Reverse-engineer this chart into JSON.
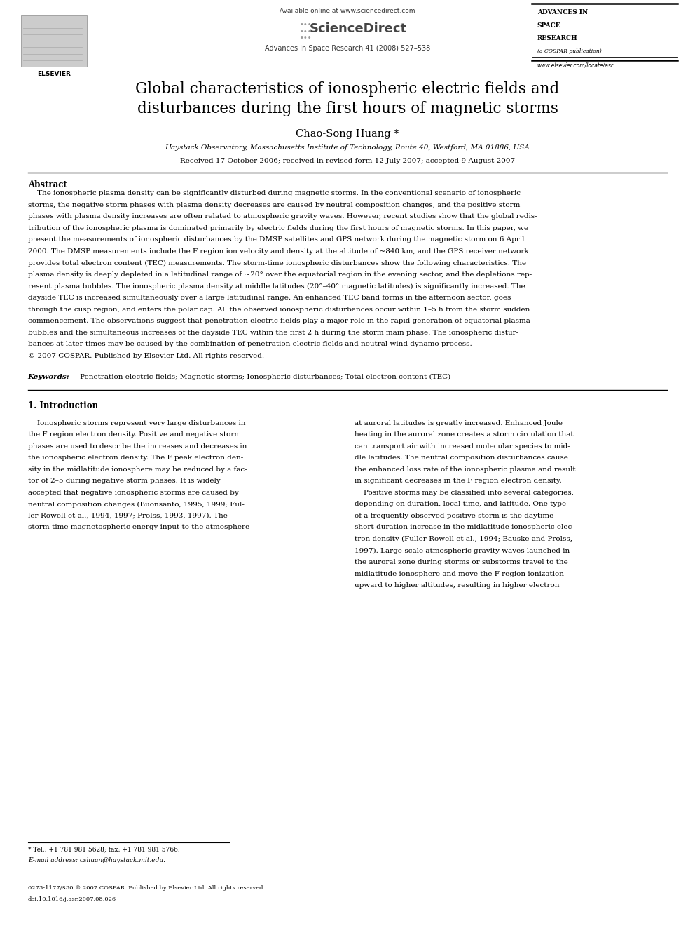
{
  "bg_color": "#ffffff",
  "page_width": 9.92,
  "page_height": 13.23,
  "available_online": "Available online at www.sciencedirect.com",
  "journal_line": "Advances in Space Research 41 (2008) 527–538",
  "website": "www.elsevier.com/locate/asr",
  "advances_lines": [
    "ADVANCES IN",
    "SPACE",
    "RESEARCH",
    "(a COSPAR publication)"
  ],
  "elsevier": "ELSEVIER",
  "sciencedirect": "ScienceDirect",
  "title": "Global characteristics of ionospheric electric fields and\ndisturbances during the first hours of magnetic storms",
  "author": "Chao-Song Huang *",
  "affiliation": "Haystack Observatory, Massachusetts Institute of Technology, Route 40, Westford, MA 01886, USA",
  "received": "Received 17 October 2006; received in revised form 12 July 2007; accepted 9 August 2007",
  "abstract_title": "Abstract",
  "abstract_lines": [
    "    The ionospheric plasma density can be significantly disturbed during magnetic storms. In the conventional scenario of ionospheric",
    "storms, the negative storm phases with plasma density decreases are caused by neutral composition changes, and the positive storm",
    "phases with plasma density increases are often related to atmospheric gravity waves. However, recent studies show that the global redis-",
    "tribution of the ionospheric plasma is dominated primarily by electric fields during the first hours of magnetic storms. In this paper, we",
    "present the measurements of ionospheric disturbances by the DMSP satellites and GPS network during the magnetic storm on 6 April",
    "2000. The DMSP measurements include the F region ion velocity and density at the altitude of ~840 km, and the GPS receiver network",
    "provides total electron content (TEC) measurements. The storm-time ionospheric disturbances show the following characteristics. The",
    "plasma density is deeply depleted in a latitudinal range of ~20° over the equatorial region in the evening sector, and the depletions rep-",
    "resent plasma bubbles. The ionospheric plasma density at middle latitudes (20°–40° magnetic latitudes) is significantly increased. The",
    "dayside TEC is increased simultaneously over a large latitudinal range. An enhanced TEC band forms in the afternoon sector, goes",
    "through the cusp region, and enters the polar cap. All the observed ionospheric disturbances occur within 1–5 h from the storm sudden",
    "commencement. The observations suggest that penetration electric fields play a major role in the rapid generation of equatorial plasma",
    "bubbles and the simultaneous increases of the dayside TEC within the first 2 h during the storm main phase. The ionospheric distur-",
    "bances at later times may be caused by the combination of penetration electric fields and neutral wind dynamo process.",
    "© 2007 COSPAR. Published by Elsevier Ltd. All rights reserved."
  ],
  "keywords_label": "Keywords:",
  "keywords_text": " Penetration electric fields; Magnetic storms; Ionospheric disturbances; Total electron content (TEC)",
  "section1_title": "1. Introduction",
  "col1_lines": [
    "    Ionospheric storms represent very large disturbances in",
    "the F region electron density. Positive and negative storm",
    "phases are used to describe the increases and decreases in",
    "the ionospheric electron density. The F peak electron den-",
    "sity in the midlatitude ionosphere may be reduced by a fac-",
    "tor of 2–5 during negative storm phases. It is widely",
    "accepted that negative ionospheric storms are caused by",
    "neutral composition changes (Buonsanto, 1995, 1999; Ful-",
    "ler-Rowell et al., 1994, 1997; Prolss, 1993, 1997). The",
    "storm-time magnetospheric energy input to the atmosphere"
  ],
  "col2_lines": [
    "at auroral latitudes is greatly increased. Enhanced Joule",
    "heating in the auroral zone creates a storm circulation that",
    "can transport air with increased molecular species to mid-",
    "dle latitudes. The neutral composition disturbances cause",
    "the enhanced loss rate of the ionospheric plasma and result",
    "in significant decreases in the F region electron density.",
    "    Positive storms may be classified into several categories,",
    "depending on duration, local time, and latitude. One type",
    "of a frequently observed positive storm is the daytime",
    "short-duration increase in the midlatitude ionospheric elec-",
    "tron density (Fuller-Rowell et al., 1994; Bauske and Prolss,",
    "1997). Large-scale atmospheric gravity waves launched in",
    "the auroral zone during storms or substorms travel to the",
    "midlatitude ionosphere and move the F region ionization",
    "upward to higher altitudes, resulting in higher electron"
  ],
  "footnote_line1": "* Tel.: +1 781 981 5628; fax: +1 781 981 5766.",
  "footnote_line2": "E-mail address: cshuan@haystack.mit.edu.",
  "footer_issn": "0273-1177/$30 © 2007 COSPAR. Published by Elsevier Ltd. All rights reserved.",
  "footer_doi": "doi:10.1016/j.asr.2007.08.026"
}
